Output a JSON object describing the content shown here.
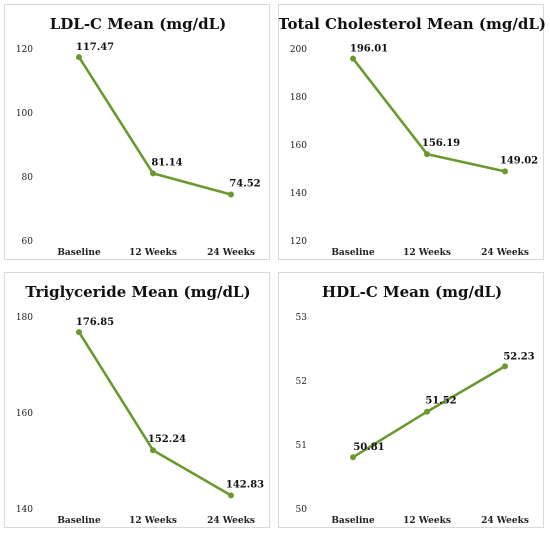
{
  "colors": {
    "series": "#6a9a2f",
    "border": "#d9d9d9",
    "text": "#111111"
  },
  "chart_data": [
    {
      "type": "line",
      "title": "LDL-C Mean (mg/dL)",
      "categories": [
        "Baseline",
        "12 Weeks",
        "24 Weeks"
      ],
      "series": [
        {
          "values": [
            117.47,
            81.14,
            74.52
          ],
          "labels": [
            "117.47",
            "81.14",
            "74.52"
          ]
        }
      ],
      "ylim": [
        60,
        120
      ],
      "yticks": [
        60,
        80,
        100,
        120
      ],
      "ytick_labels": [
        "60",
        "80",
        "100",
        "120"
      ],
      "grid": false,
      "legend": "none"
    },
    {
      "type": "line",
      "title": "Total Cholesterol Mean (mg/dL)",
      "categories": [
        "Baseline",
        "12 Weeks",
        "24 Weeks"
      ],
      "series": [
        {
          "values": [
            196.01,
            156.19,
            149.02
          ],
          "labels": [
            "196.01",
            "156.19",
            "149.02"
          ]
        }
      ],
      "ylim": [
        120,
        200
      ],
      "yticks": [
        120,
        140,
        160,
        180,
        200
      ],
      "ytick_labels": [
        "120",
        "140",
        "160",
        "180",
        "200"
      ],
      "grid": false,
      "legend": "none"
    },
    {
      "type": "line",
      "title": "Triglyceride Mean (mg/dL)",
      "categories": [
        "Baseline",
        "12 Weeks",
        "24 Weeks"
      ],
      "series": [
        {
          "values": [
            176.85,
            152.24,
            142.83
          ],
          "labels": [
            "176.85",
            "152.24",
            "142.83"
          ]
        }
      ],
      "ylim": [
        140,
        180
      ],
      "yticks": [
        140,
        160,
        180
      ],
      "ytick_labels": [
        "140",
        "160",
        "180"
      ],
      "grid": false,
      "legend": "none"
    },
    {
      "type": "line",
      "title": "HDL-C Mean (mg/dL)",
      "categories": [
        "Baseline",
        "12 Weeks",
        "24 Weeks"
      ],
      "series": [
        {
          "values": [
            50.81,
            51.52,
            52.23
          ],
          "labels": [
            "50.81",
            "51.52",
            "52.23"
          ]
        }
      ],
      "ylim": [
        50,
        53
      ],
      "yticks": [
        50,
        51,
        52,
        53
      ],
      "ytick_labels": [
        "50",
        "51",
        "52",
        "53"
      ],
      "grid": false,
      "legend": "none"
    }
  ]
}
